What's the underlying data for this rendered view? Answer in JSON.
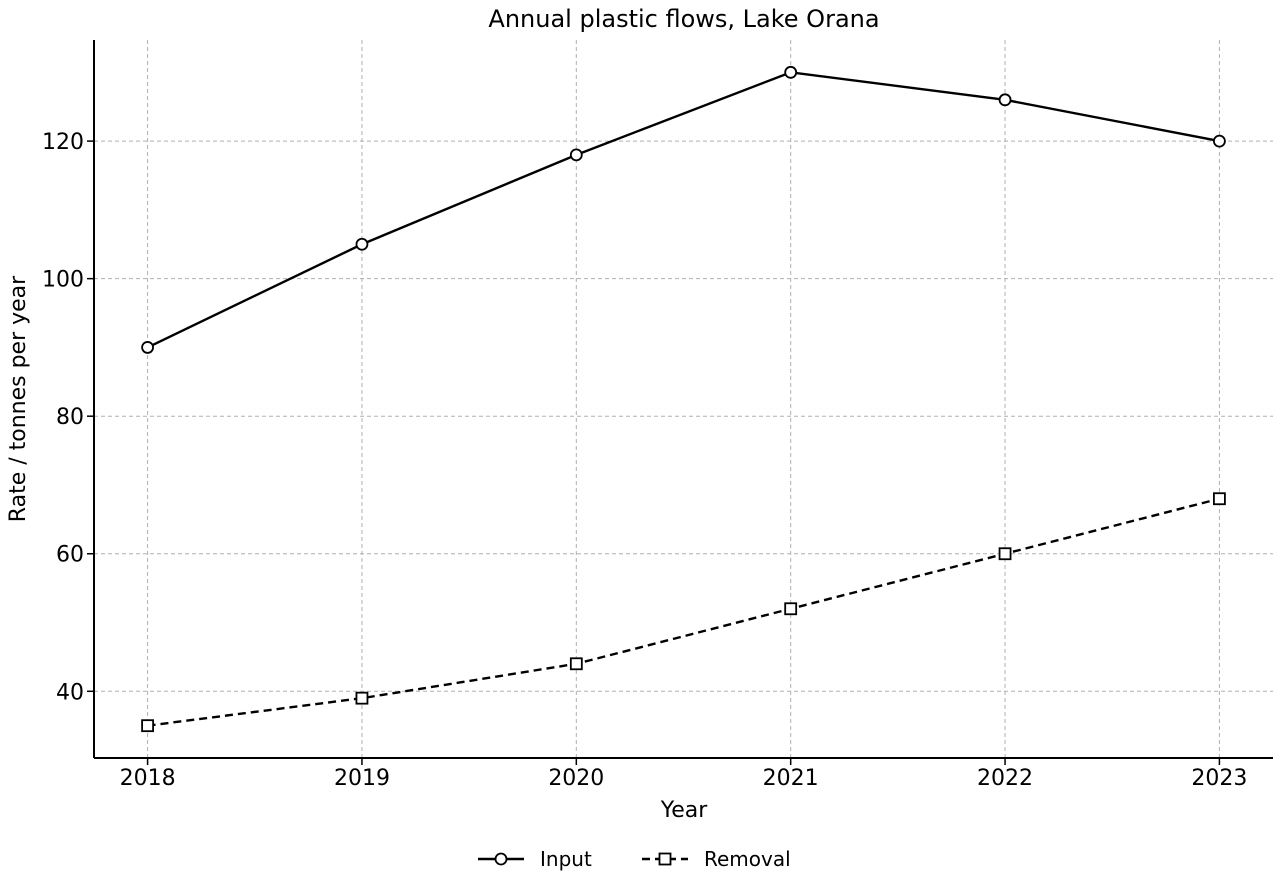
{
  "chart_data": {
    "type": "line",
    "title": "Annual plastic flows, Lake Orana",
    "xlabel": "Year",
    "ylabel": "Rate / tonnes per year",
    "x": [
      2018,
      2019,
      2020,
      2021,
      2022,
      2023
    ],
    "xlim": [
      2017.75,
      2023.25
    ],
    "ylim": [
      30.3,
      134.7
    ],
    "yticks": [
      40,
      60,
      80,
      100,
      120
    ],
    "grid": true,
    "legend_position": "bottom-center",
    "series": [
      {
        "name": "Input",
        "values": [
          90,
          105,
          118,
          130,
          126,
          120
        ],
        "line_style": "solid",
        "marker": "circle",
        "color": "#000000"
      },
      {
        "name": "Removal",
        "values": [
          35,
          39,
          44,
          52,
          60,
          68
        ],
        "line_style": "dashed",
        "marker": "square",
        "color": "#000000"
      }
    ]
  }
}
